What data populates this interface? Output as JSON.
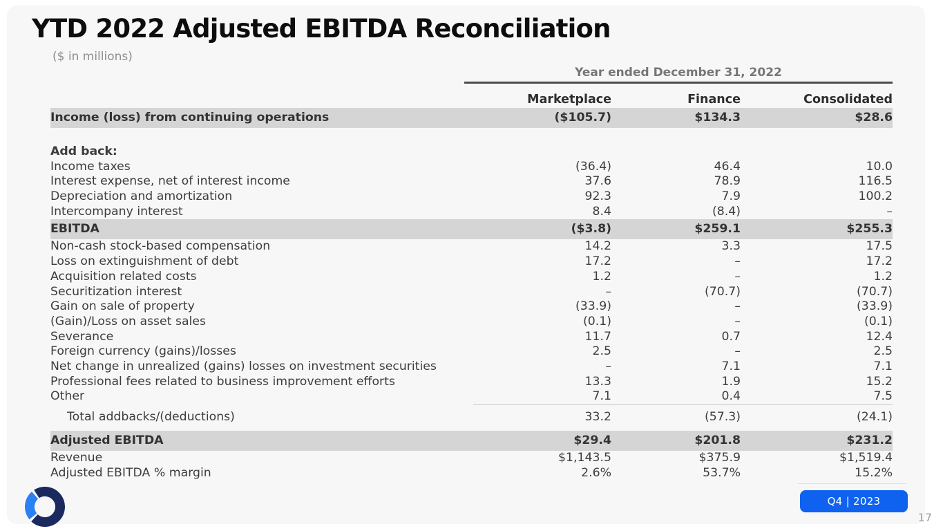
{
  "slide": {
    "title": "YTD 2022 Adjusted EBITDA Reconciliation",
    "subtitle": "($ in millions)"
  },
  "table": {
    "period_header": "Year ended December 31, 2022",
    "columns": [
      "Marketplace",
      "Finance",
      "Consolidated"
    ],
    "rows": [
      {
        "label": "Income (loss) from continuing operations",
        "values": [
          "($105.7)",
          "$134.3",
          "$28.6"
        ],
        "style": "band"
      },
      {
        "style": "spacer"
      },
      {
        "label": "Add back:",
        "values": [
          "",
          "",
          ""
        ],
        "style": "bold"
      },
      {
        "label": "Income taxes",
        "values": [
          "(36.4)",
          "46.4",
          "10.0"
        ]
      },
      {
        "label": "Interest expense, net of interest income",
        "values": [
          "37.6",
          "78.9",
          "116.5"
        ]
      },
      {
        "label": "Depreciation and amortization",
        "values": [
          "92.3",
          "7.9",
          "100.2"
        ]
      },
      {
        "label": "Intercompany interest",
        "values": [
          "8.4",
          "(8.4)",
          "–"
        ]
      },
      {
        "label": "EBITDA",
        "values": [
          "($3.8)",
          "$259.1",
          "$255.3"
        ],
        "style": "band"
      },
      {
        "label": "Non-cash stock-based compensation",
        "values": [
          "14.2",
          "3.3",
          "17.5"
        ]
      },
      {
        "label": "Loss on extinguishment of debt",
        "values": [
          "17.2",
          "–",
          "17.2"
        ]
      },
      {
        "label": "Acquisition related costs",
        "values": [
          "1.2",
          "–",
          "1.2"
        ]
      },
      {
        "label": "Securitization interest",
        "values": [
          "–",
          "(70.7)",
          "(70.7)"
        ]
      },
      {
        "label": "Gain on sale of property",
        "values": [
          "(33.9)",
          "–",
          "(33.9)"
        ]
      },
      {
        "label": "(Gain)/Loss on asset sales",
        "values": [
          "(0.1)",
          "–",
          "(0.1)"
        ]
      },
      {
        "label": "Severance",
        "values": [
          "11.7",
          "0.7",
          "12.4"
        ]
      },
      {
        "label": "Foreign currency (gains)/losses",
        "values": [
          "2.5",
          "–",
          "2.5"
        ]
      },
      {
        "label": "Net change in unrealized (gains) losses on investment securities",
        "values": [
          "–",
          "7.1",
          "7.1"
        ]
      },
      {
        "label": "Professional fees related to business improvement efforts",
        "values": [
          "13.3",
          "1.9",
          "15.2"
        ]
      },
      {
        "label": "Other",
        "values": [
          "7.1",
          "0.4",
          "7.5"
        ],
        "underline_values": true
      },
      {
        "label": "Total addbacks/(deductions)",
        "values": [
          "33.2",
          "(57.3)",
          "(24.1)"
        ],
        "style": "indent"
      },
      {
        "label": "Adjusted EBITDA",
        "values": [
          "$29.4",
          "$201.8",
          "$231.2"
        ],
        "style": "band",
        "gap_above": true
      },
      {
        "label": "Revenue",
        "values": [
          "$1,143.5",
          "$375.9",
          "$1,519.4"
        ]
      },
      {
        "label": "Adjusted EBITDA % margin",
        "values": [
          "2.6%",
          "53.7%",
          "15.2%"
        ]
      }
    ]
  },
  "footer": {
    "badge_label": "Q4 | 2023",
    "page_number": "17"
  },
  "colors": {
    "badge_blue": "#0f62f0",
    "logo_navy": "#1b2a5e",
    "logo_light_blue": "#2b80f5",
    "band_gray": "#d5d5d5",
    "slide_bg": "#f7f7f8"
  }
}
